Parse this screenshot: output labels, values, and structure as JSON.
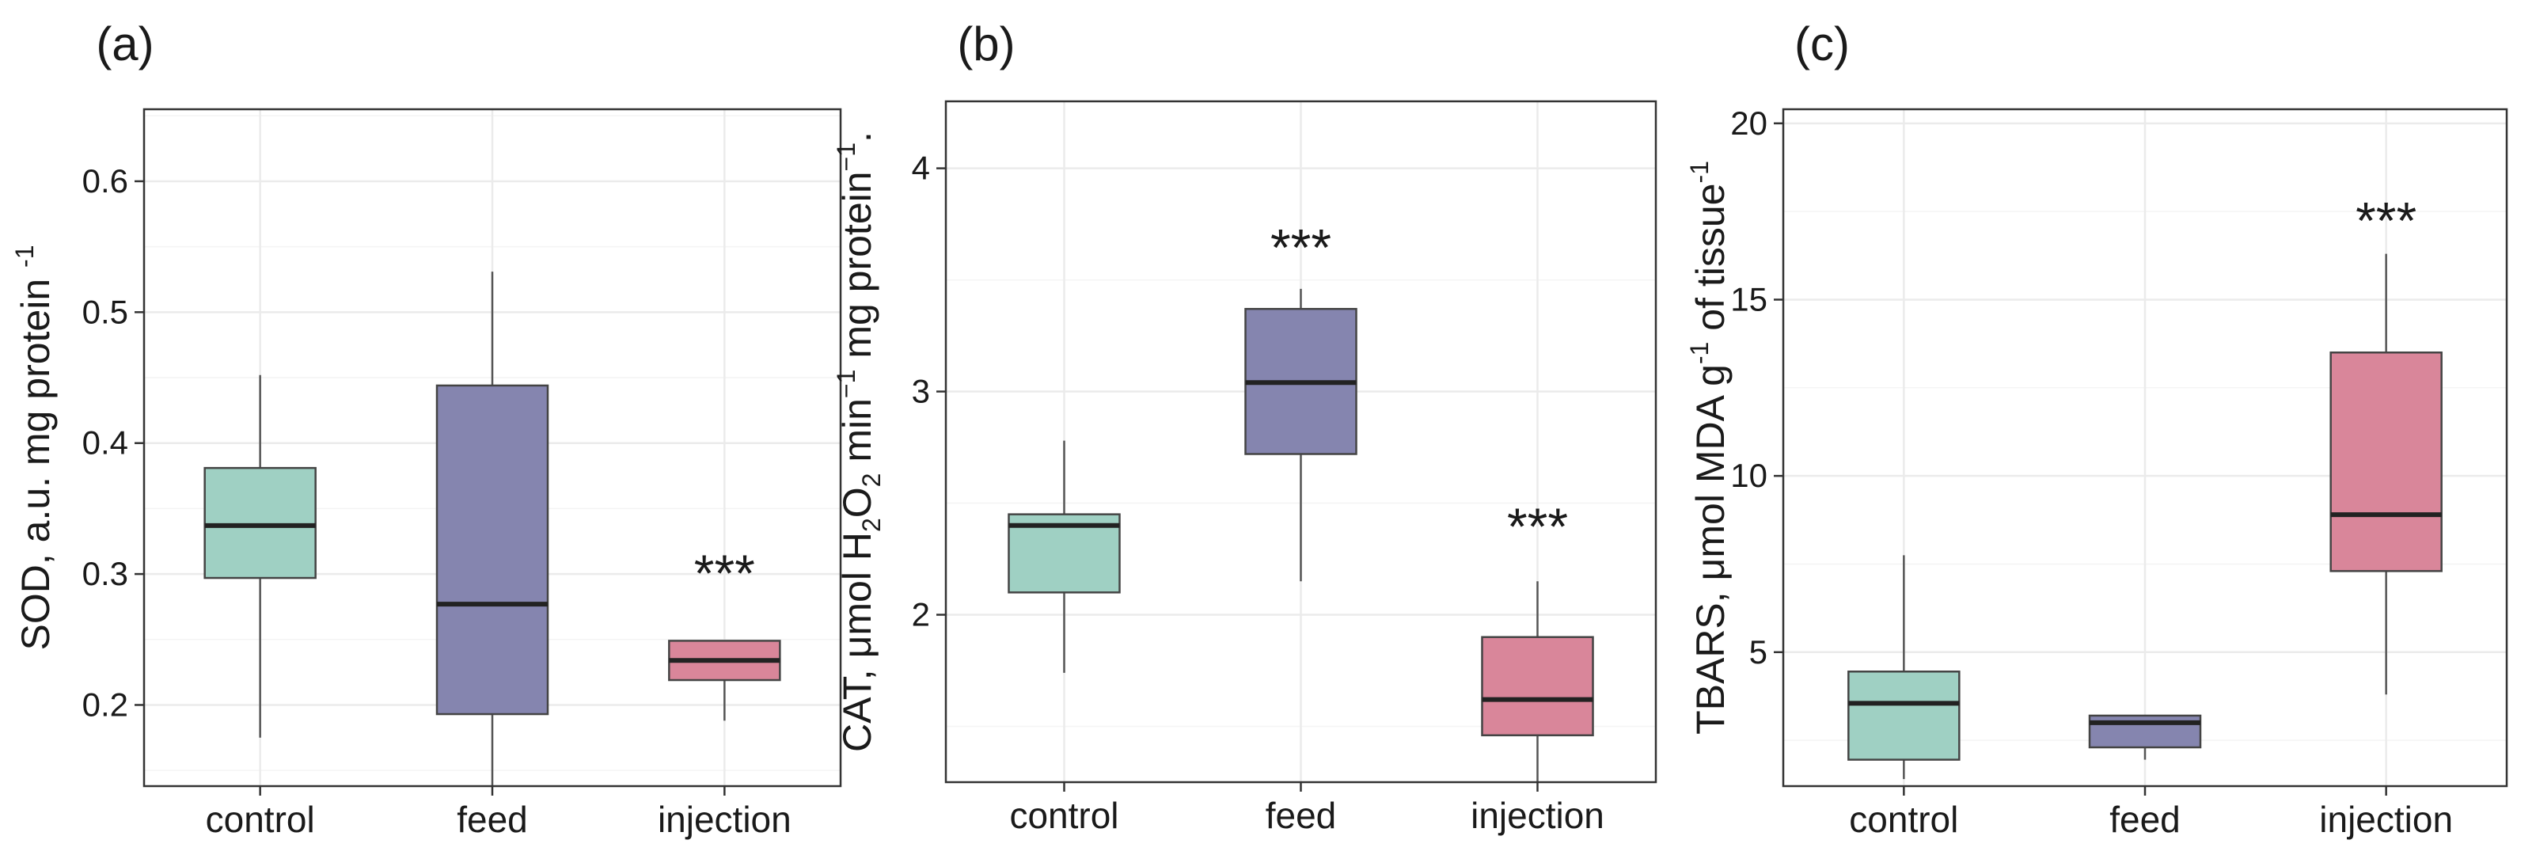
{
  "chart_data": [
    {
      "type": "box",
      "panel_label": "(a)",
      "ylabel": "SOD, a.u. mg protein",
      "ylabel_sup": "-1",
      "ylim": [
        0.138,
        0.655
      ],
      "yticks": [
        0.2,
        0.3,
        0.4,
        0.5,
        0.6
      ],
      "categories": [
        "control",
        "feed",
        "injection"
      ],
      "boxes": [
        {
          "category": "control",
          "whisker_low": 0.175,
          "q1": 0.297,
          "median": 0.337,
          "q3": 0.381,
          "whisker_high": 0.452,
          "color": "#9fd0c3"
        },
        {
          "category": "feed",
          "whisker_low": 0.138,
          "q1": 0.193,
          "median": 0.277,
          "q3": 0.444,
          "whisker_high": 0.531,
          "color": "#8585af"
        },
        {
          "category": "injection",
          "whisker_low": 0.188,
          "q1": 0.219,
          "median": 0.234,
          "q3": 0.249,
          "whisker_high": 0.249,
          "color": "#d9869a"
        }
      ],
      "annotations": [
        {
          "category": "injection",
          "text": "***",
          "y": 0.305
        }
      ]
    },
    {
      "type": "box",
      "panel_label": "(b)",
      "ylabel": "CAT, μmol H2O2 min−1 mg protein−1.",
      "ylabel_parts": [
        "CAT, μmol H",
        "2",
        "O",
        "2",
        " min",
        "−1",
        " mg protein",
        "−1",
        "."
      ],
      "ylim": [
        1.25,
        4.3
      ],
      "yticks": [
        2,
        3,
        4
      ],
      "categories": [
        "control",
        "feed",
        "injection"
      ],
      "boxes": [
        {
          "category": "control",
          "whisker_low": 1.74,
          "q1": 2.1,
          "median": 2.4,
          "q3": 2.45,
          "whisker_high": 2.78,
          "color": "#9fd0c3"
        },
        {
          "category": "feed",
          "whisker_low": 2.15,
          "q1": 2.72,
          "median": 3.04,
          "q3": 3.37,
          "whisker_high": 3.46,
          "color": "#8585af"
        },
        {
          "category": "injection",
          "whisker_low": 1.25,
          "q1": 1.46,
          "median": 1.62,
          "q3": 1.9,
          "whisker_high": 2.15,
          "color": "#d9869a"
        }
      ],
      "annotations": [
        {
          "category": "feed",
          "text": "***",
          "y": 3.67
        },
        {
          "category": "injection",
          "text": "***",
          "y": 2.42
        }
      ]
    },
    {
      "type": "box",
      "panel_label": "(c)",
      "ylabel": "TBARS, μmol MDA g-1 of tissue-1",
      "ylabel_parts": [
        "TBARS, μmol MDA g",
        "-1",
        " of tissue",
        "-1"
      ],
      "ylim": [
        1.2,
        20.4
      ],
      "yticks": [
        5,
        10,
        15,
        20
      ],
      "categories": [
        "control",
        "feed",
        "injection"
      ],
      "boxes": [
        {
          "category": "control",
          "whisker_low": 1.4,
          "q1": 1.95,
          "median": 3.55,
          "q3": 4.45,
          "whisker_high": 7.75,
          "color": "#9fd0c3"
        },
        {
          "category": "feed",
          "whisker_low": 1.95,
          "q1": 2.3,
          "median": 3.0,
          "q3": 3.2,
          "whisker_high": 3.2,
          "color": "#8585af"
        },
        {
          "category": "injection",
          "whisker_low": 3.8,
          "q1": 7.3,
          "median": 8.9,
          "q3": 13.5,
          "whisker_high": 16.3,
          "color": "#d9869a"
        }
      ],
      "annotations": [
        {
          "category": "injection",
          "text": "***",
          "y": 17.4
        }
      ]
    }
  ]
}
